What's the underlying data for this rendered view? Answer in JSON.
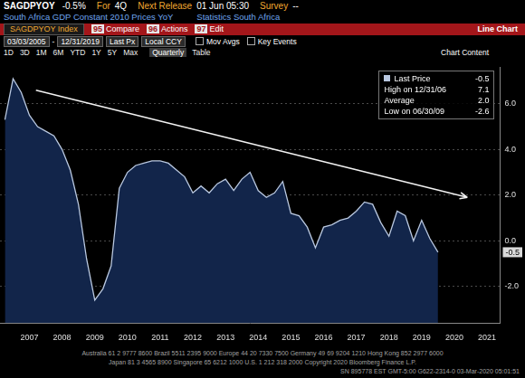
{
  "header": {
    "ticker": "SAGDPYOY",
    "last": "-0.5%",
    "items": [
      {
        "label": "For",
        "value": "4Q"
      },
      {
        "label": "Next Release",
        "value": "01 Jun 05:30"
      },
      {
        "label": "Survey",
        "value": "--"
      }
    ],
    "description": "South Africa GDP Constant 2010 Prices YoY",
    "source": "Statistics South Africa"
  },
  "toolbar": {
    "security": "SAGDPYOY Index",
    "menu": [
      {
        "key": "95",
        "label": "Compare"
      },
      {
        "key": "96",
        "label": "Actions"
      },
      {
        "key": "97",
        "label": "Edit"
      }
    ],
    "view": "Line Chart"
  },
  "controls": {
    "start": "03/03/2005",
    "separator": "-",
    "end": "12/31/2019",
    "fields": [
      "Last Px",
      "Local CCY"
    ],
    "toggles": [
      "Mov Avgs",
      "Key Events"
    ]
  },
  "periods": {
    "buttons": [
      "1D",
      "3D",
      "1M",
      "6M",
      "YTD",
      "1Y",
      "5Y",
      "Max"
    ],
    "frequency": "Quarterly",
    "table": "Table",
    "chart_content": "Chart Content"
  },
  "chart_data": {
    "type": "area",
    "x": [
      2006.75,
      2007,
      2007.25,
      2007.5,
      2007.75,
      2008,
      2008.25,
      2008.5,
      2008.75,
      2009,
      2009.25,
      2009.5,
      2009.75,
      2010,
      2010.25,
      2010.5,
      2010.75,
      2011,
      2011.25,
      2011.5,
      2011.75,
      2012,
      2012.25,
      2012.5,
      2012.75,
      2013,
      2013.25,
      2013.5,
      2013.75,
      2014,
      2014.25,
      2014.5,
      2014.75,
      2015,
      2015.25,
      2015.5,
      2015.75,
      2016,
      2016.25,
      2016.5,
      2016.75,
      2017,
      2017.25,
      2017.5,
      2017.75,
      2018,
      2018.25,
      2018.5,
      2018.75,
      2019,
      2019.25,
      2019.5,
      2019.75,
      2020
    ],
    "series": [
      {
        "name": "Last Price",
        "color": "#b9c8e0",
        "values": [
          5.3,
          7.1,
          6.5,
          5.5,
          5.0,
          4.8,
          4.6,
          4.0,
          3.1,
          1.6,
          -0.8,
          -2.6,
          -2.1,
          -1.1,
          2.3,
          3.0,
          3.3,
          3.4,
          3.5,
          3.5,
          3.4,
          3.1,
          2.8,
          2.1,
          2.4,
          2.1,
          2.5,
          2.7,
          2.2,
          2.7,
          3.0,
          2.2,
          1.9,
          2.1,
          2.6,
          1.2,
          1.1,
          0.6,
          -0.3,
          0.6,
          0.7,
          0.9,
          1.0,
          1.3,
          1.7,
          1.6,
          0.8,
          0.2,
          1.3,
          1.1,
          0.0,
          0.9,
          0.1,
          -0.5
        ],
        "last_value_label": "-0.5"
      }
    ],
    "xlim": [
      2006.6,
      2021.9
    ],
    "xticks": [
      {
        "value": 2007.5,
        "label": "2007"
      },
      {
        "value": 2008.5,
        "label": "2008"
      },
      {
        "value": 2009.5,
        "label": "2009"
      },
      {
        "value": 2010.5,
        "label": "2010"
      },
      {
        "value": 2011.5,
        "label": "2011"
      },
      {
        "value": 2012.5,
        "label": "2012"
      },
      {
        "value": 2013.5,
        "label": "2013"
      },
      {
        "value": 2014.5,
        "label": "2014"
      },
      {
        "value": 2015.5,
        "label": "2015"
      },
      {
        "value": 2016.5,
        "label": "2016"
      },
      {
        "value": 2017.5,
        "label": "2017"
      },
      {
        "value": 2018.5,
        "label": "2018"
      },
      {
        "value": 2019.5,
        "label": "2019"
      },
      {
        "value": 2020.5,
        "label": "2020"
      },
      {
        "value": 2021.5,
        "label": "2021"
      }
    ],
    "ylim": [
      -3.6,
      7.6
    ],
    "yticks": [
      {
        "value": -2,
        "label": "-2.0"
      },
      {
        "value": 0,
        "label": "0.0"
      },
      {
        "value": 2,
        "label": "2.0"
      },
      {
        "value": 4,
        "label": "4.0"
      },
      {
        "value": 6,
        "label": "6.0"
      }
    ],
    "grid": true,
    "legend": "top right",
    "stats": [
      {
        "label": "High on 12/31/06",
        "value": "7.1"
      },
      {
        "label": "Average",
        "value": "2.0"
      },
      {
        "label": "Low on 06/30/09",
        "value": "-2.6"
      }
    ],
    "annotations": [
      {
        "type": "arrow",
        "x": [
          2007.7,
          2020.9
        ],
        "y": [
          6.6,
          1.9
        ]
      }
    ]
  },
  "footer": [
    "Australia 61 2 9777 8600 Brazil 5511 2395 9000 Europe 44 20 7330 7500 Germany 49 69 9204 1210 Hong Kong 852 2977 6000",
    "Japan 81 3 4565 8900       Singapore 65 6212 1000       U.S. 1 212 318 2000       Copyright 2020 Bloomberg Finance L.P.",
    "SN 895778 EST  GMT-5:00 G622-2314-0 03-Mar-2020 05:01:51"
  ]
}
